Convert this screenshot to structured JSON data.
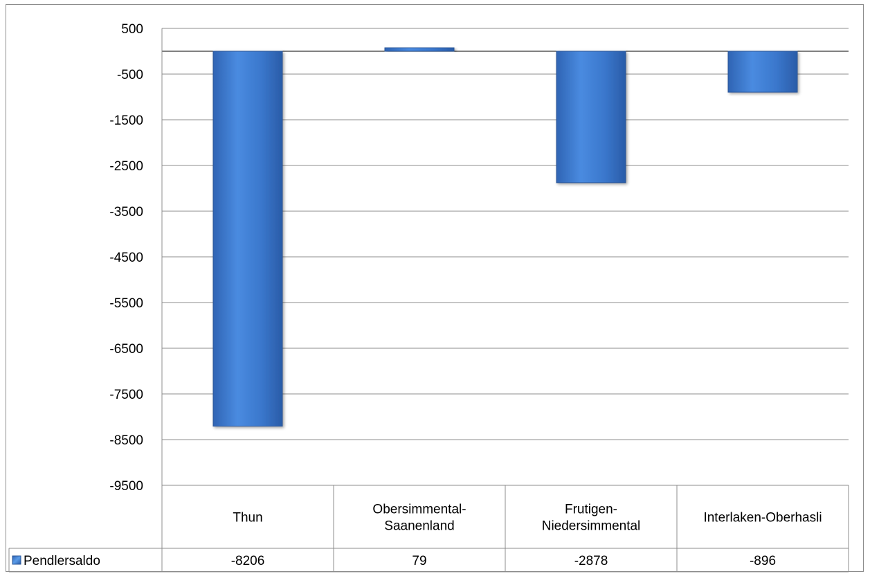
{
  "chart_data": {
    "type": "bar",
    "title": "",
    "xlabel": "",
    "ylabel": "",
    "categories": [
      [
        "Thun"
      ],
      [
        "Obersimmental-",
        "Saanenland"
      ],
      [
        "Frutigen-",
        "Niedersimmental"
      ],
      [
        "Interlaken-Oberhasli"
      ]
    ],
    "series": [
      {
        "name": "Pendlersaldo",
        "values": [
          -8206,
          79,
          -2878,
          -896
        ],
        "color": "#3f7fd6"
      }
    ],
    "data_table": {
      "row_label": "Pendlersaldo",
      "cells": [
        "-8206",
        "79",
        "-2878",
        "-896"
      ]
    },
    "yticks": [
      500,
      -500,
      -1500,
      -2500,
      -3500,
      -4500,
      -5500,
      -6500,
      -7500,
      -8500,
      -9500
    ],
    "ylim": [
      -9500,
      500
    ],
    "grid": true,
    "legend": "data-table-row"
  }
}
